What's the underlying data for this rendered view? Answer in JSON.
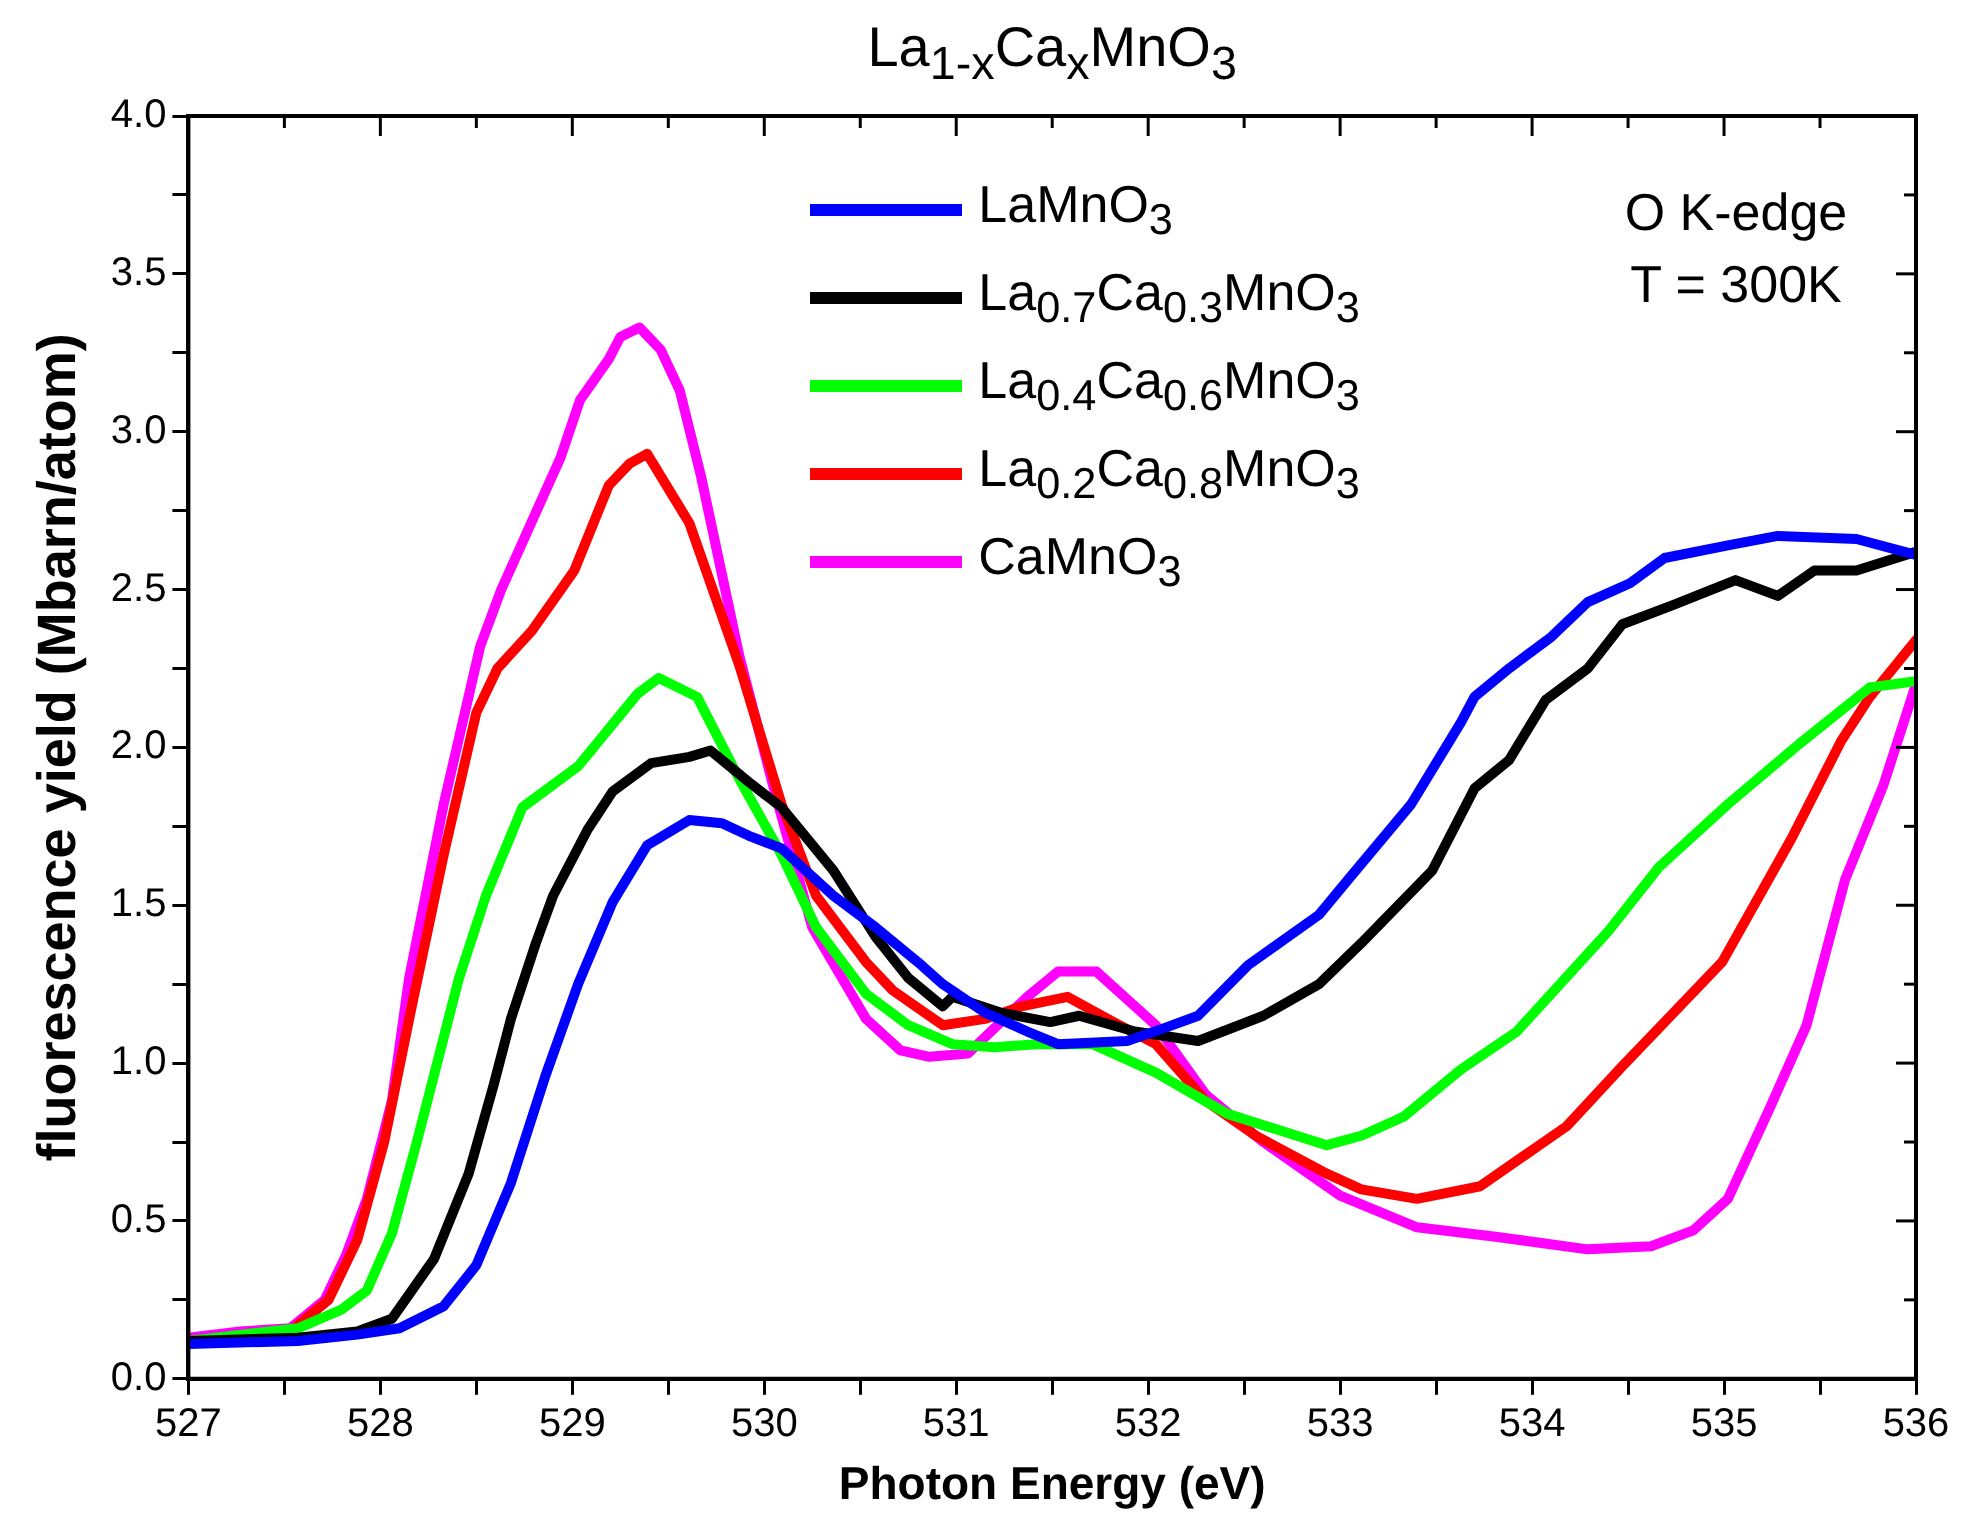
{
  "chart_data": {
    "type": "line",
    "title": "La$_{1-x}$Ca$_{x}$MnO$_{3}$",
    "xlabel": "Photon Energy (eV)",
    "ylabel": "fluorescence yield (Mbarn/atom)",
    "annotations": [
      "O K-edge",
      "T = 300K"
    ],
    "legend": "top",
    "grid": false,
    "marker": "none",
    "line_style": "solid",
    "xlim": [
      527,
      536
    ],
    "xticks": [
      527,
      {
        "value": 527.5,
        "label": null
      },
      528,
      {
        "value": 528.5,
        "label": null
      },
      529,
      {
        "value": 529.5,
        "label": null
      },
      530,
      {
        "value": 530.5,
        "label": null
      },
      531,
      {
        "value": 531.5,
        "label": null
      },
      532,
      {
        "value": 532.5,
        "label": null
      },
      533,
      {
        "value": 533.5,
        "label": null
      },
      534,
      {
        "value": 534.5,
        "label": null
      },
      535,
      {
        "value": 535.5,
        "label": null
      },
      536
    ],
    "ylim": [
      0,
      4
    ],
    "yticks": [
      {
        "value": 0,
        "label": "0.0"
      },
      {
        "value": 0.25,
        "label": null
      },
      {
        "value": 0.5,
        "label": "0.5"
      },
      {
        "value": 0.75,
        "label": null
      },
      {
        "value": 1,
        "label": "1.0"
      },
      {
        "value": 1.25,
        "label": null
      },
      {
        "value": 1.5,
        "label": "1.5"
      },
      {
        "value": 1.75,
        "label": null
      },
      {
        "value": 2,
        "label": "2.0"
      },
      {
        "value": 2.25,
        "label": null
      },
      {
        "value": 2.5,
        "label": "2.5"
      },
      {
        "value": 2.75,
        "label": null
      },
      {
        "value": 3,
        "label": "3.0"
      },
      {
        "value": 3.25,
        "label": null
      },
      {
        "value": 3.5,
        "label": "3.5"
      },
      {
        "value": 3.75,
        "label": null
      },
      {
        "value": 4,
        "label": "4.0"
      }
    ],
    "series": [
      {
        "name": "LaMnO$_{3}$",
        "color": "#0000ff",
        "x": [
          527,
          527.57,
          527.88,
          528.1,
          528.33,
          528.5,
          528.68,
          528.86,
          529.03,
          529.21,
          529.39,
          529.61,
          529.78,
          529.92,
          530.09,
          530.36,
          530.58,
          530.8,
          530.93,
          531.15,
          531.37,
          531.53,
          531.89,
          532.08,
          532.26,
          532.52,
          532.89,
          533.04,
          533.37,
          533.63,
          533.7,
          533.88,
          534.1,
          534.29,
          534.51,
          534.69,
          535.02,
          535.28,
          535.69,
          536
        ],
        "values": [
          0.11,
          0.12,
          0.14,
          0.16,
          0.23,
          0.36,
          0.62,
          0.96,
          1.25,
          1.51,
          1.69,
          1.77,
          1.76,
          1.72,
          1.68,
          1.53,
          1.43,
          1.32,
          1.25,
          1.16,
          1.1,
          1.06,
          1.07,
          1.11,
          1.15,
          1.31,
          1.47,
          1.58,
          1.82,
          2.08,
          2.16,
          2.25,
          2.35,
          2.46,
          2.52,
          2.6,
          2.64,
          2.67,
          2.66,
          2.61
        ]
      },
      {
        "name": "La$_{0.7}$Ca$_{0.3}$MnO$_{3}$",
        "color": "#000000",
        "x": [
          527,
          527.57,
          527.88,
          528.06,
          528.28,
          528.46,
          528.59,
          528.68,
          528.81,
          528.9,
          529.08,
          529.21,
          529.41,
          529.61,
          529.72,
          529.92,
          530.09,
          530.36,
          530.58,
          530.75,
          530.93,
          530.98,
          531.23,
          531.49,
          531.64,
          531.93,
          532.26,
          532.6,
          532.89,
          533.11,
          533.48,
          533.7,
          533.88,
          534.07,
          534.29,
          534.47,
          534.73,
          535.06,
          535.28,
          535.47,
          535.69,
          536
        ],
        "values": [
          0.12,
          0.13,
          0.15,
          0.19,
          0.38,
          0.65,
          0.93,
          1.14,
          1.38,
          1.53,
          1.74,
          1.86,
          1.95,
          1.97,
          1.99,
          1.89,
          1.81,
          1.61,
          1.4,
          1.27,
          1.18,
          1.21,
          1.16,
          1.13,
          1.15,
          1.1,
          1.07,
          1.15,
          1.25,
          1.38,
          1.61,
          1.87,
          1.96,
          2.15,
          2.25,
          2.39,
          2.45,
          2.53,
          2.48,
          2.56,
          2.56,
          2.62
        ]
      },
      {
        "name": "La$_{0.4}$Ca$_{0.6}$MnO$_{3}$",
        "color": "#00ff00",
        "x": [
          527,
          527.57,
          527.8,
          527.93,
          528.06,
          528.19,
          528.41,
          528.55,
          528.74,
          529.03,
          529.34,
          529.45,
          529.65,
          529.87,
          530.09,
          530.27,
          530.53,
          530.75,
          530.98,
          531.2,
          531.42,
          531.71,
          532.04,
          532.41,
          532.93,
          533.11,
          533.33,
          533.63,
          533.92,
          534.4,
          534.66,
          535.02,
          535.39,
          535.76,
          536
        ],
        "values": [
          0.12,
          0.16,
          0.22,
          0.28,
          0.46,
          0.75,
          1.27,
          1.53,
          1.81,
          1.94,
          2.17,
          2.22,
          2.16,
          1.9,
          1.66,
          1.43,
          1.22,
          1.12,
          1.06,
          1.05,
          1.06,
          1.06,
          0.97,
          0.84,
          0.74,
          0.77,
          0.83,
          0.98,
          1.1,
          1.42,
          1.62,
          1.82,
          2.01,
          2.19,
          2.21
        ]
      },
      {
        "name": "La$_{0.2}$Ca$_{0.8}$MnO$_{3}$",
        "color": "#ff0000",
        "x": [
          527,
          527.53,
          527.73,
          527.88,
          528.02,
          528.15,
          528.33,
          528.5,
          528.61,
          528.79,
          529.01,
          529.19,
          529.3,
          529.39,
          529.61,
          529.87,
          530.09,
          530.27,
          530.53,
          530.67,
          530.93,
          531.15,
          531.34,
          531.58,
          531.82,
          532.04,
          532.3,
          532.56,
          532.93,
          533.11,
          533.4,
          533.73,
          534.18,
          534.47,
          534.99,
          535.35,
          535.61,
          535.76,
          536
        ],
        "values": [
          0.12,
          0.15,
          0.25,
          0.44,
          0.75,
          1.14,
          1.66,
          2.11,
          2.25,
          2.37,
          2.56,
          2.83,
          2.9,
          2.93,
          2.71,
          2.26,
          1.82,
          1.53,
          1.32,
          1.23,
          1.12,
          1.14,
          1.18,
          1.21,
          1.13,
          1.06,
          0.88,
          0.77,
          0.65,
          0.6,
          0.57,
          0.61,
          0.8,
          0.99,
          1.32,
          1.71,
          2.02,
          2.16,
          2.34
        ]
      },
      {
        "name": "CaMnO$_{3}$",
        "color": "#ff00ff",
        "x": [
          527,
          527.27,
          527.53,
          527.71,
          527.82,
          527.93,
          528.06,
          528.15,
          528.33,
          528.52,
          528.63,
          528.94,
          529.04,
          529.19,
          529.25,
          529.35,
          529.46,
          529.56,
          529.67,
          529.87,
          530.05,
          530.25,
          530.53,
          530.71,
          530.86,
          531.06,
          531.37,
          531.53,
          531.73,
          532.04,
          532.3,
          532.6,
          533,
          533.4,
          533.81,
          534.29,
          534.62,
          534.84,
          535.02,
          535.24,
          535.43,
          535.63,
          535.83,
          536
        ],
        "values": [
          0.13,
          0.15,
          0.16,
          0.25,
          0.39,
          0.57,
          0.88,
          1.27,
          1.82,
          2.32,
          2.5,
          2.92,
          3.1,
          3.23,
          3.3,
          3.33,
          3.26,
          3.13,
          2.86,
          2.29,
          1.87,
          1.43,
          1.14,
          1.04,
          1.02,
          1.03,
          1.21,
          1.29,
          1.29,
          1.12,
          0.9,
          0.75,
          0.58,
          0.48,
          0.45,
          0.41,
          0.42,
          0.47,
          0.57,
          0.86,
          1.12,
          1.58,
          1.88,
          2.2
        ]
      }
    ]
  }
}
